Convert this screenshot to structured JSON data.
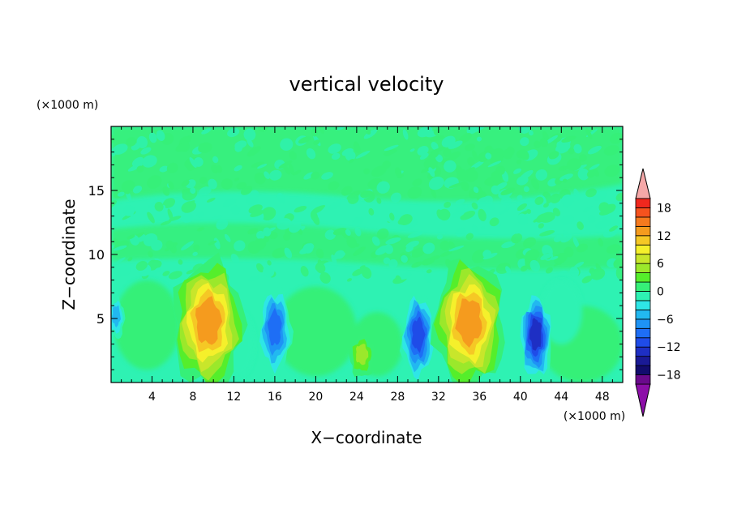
{
  "chart_data": {
    "type": "heatmap",
    "title": "vertical velocity",
    "xlabel": "X−coordinate",
    "ylabel": "Z−coordinate",
    "x_unit": "(×1000 m)",
    "y_unit": "(×1000 m)",
    "xlim": [
      0,
      50
    ],
    "ylim": [
      0,
      20
    ],
    "x_ticks": [
      "4",
      "8",
      "12",
      "16",
      "20",
      "24",
      "28",
      "32",
      "36",
      "40",
      "44",
      "48"
    ],
    "y_ticks": [
      "5",
      "10",
      "15"
    ],
    "colorbar": {
      "labels": [
        "18",
        "12",
        "6",
        "0",
        "−6",
        "−12",
        "−18"
      ],
      "levels": [
        -20,
        -18,
        -16,
        -14,
        -12,
        -10,
        -8,
        -6,
        -4,
        -2,
        0,
        2,
        4,
        6,
        8,
        10,
        12,
        14,
        16,
        18,
        20
      ],
      "colors": [
        "#6a0a8c",
        "#120c6e",
        "#1a1a96",
        "#1e2fc4",
        "#1f4ce8",
        "#1e6ef5",
        "#1e93f5",
        "#22b8f0",
        "#2ee6e6",
        "#2ef2b3",
        "#36f078",
        "#55ee2b",
        "#9be82b",
        "#c8e62b",
        "#f5f02b",
        "#f5c825",
        "#f59b1e",
        "#f57a1e",
        "#f5521e",
        "#f0281e"
      ],
      "over_color": "#f5a8a8",
      "under_color": "#8c0fa8"
    },
    "features": [
      {
        "kind": "updraft",
        "x": 9.5,
        "z": 4.5,
        "peak": 14
      },
      {
        "kind": "downdraft",
        "x": 16,
        "z": 4,
        "peak": -10
      },
      {
        "kind": "downdraft",
        "x": 30,
        "z": 3.5,
        "peak": -12
      },
      {
        "kind": "updraft",
        "x": 35,
        "z": 4.5,
        "peak": 14
      },
      {
        "kind": "downdraft",
        "x": 41.5,
        "z": 3.5,
        "peak": -14
      },
      {
        "kind": "updraft",
        "x": 24.5,
        "z": 2,
        "peak": 6
      },
      {
        "kind": "downdraft",
        "x": 0.5,
        "z": 5,
        "peak": -5
      }
    ]
  }
}
